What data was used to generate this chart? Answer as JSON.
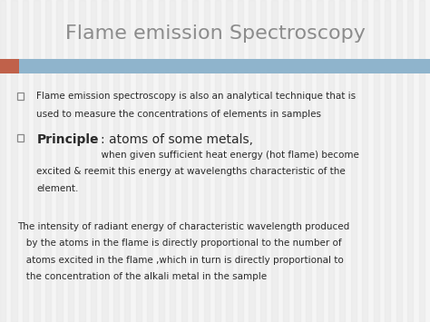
{
  "title": "Flame emission Spectroscopy",
  "title_color": "#8c8c8c",
  "title_fontsize": 16,
  "title_font": "Georgia",
  "bg_color": "#f5f5f5",
  "stripe_color": "#e8e8e8",
  "header_bar_color": "#8fb4cc",
  "header_bar_left_color": "#c0614a",
  "bullet1_line1": "Flame emission spectroscopy is also an analytical technique that is",
  "bullet1_line2": "used to measure the concentrations of elements in samples",
  "bullet2_bold": "Principle",
  "bullet2_rest": ": atoms of some metals,",
  "bullet2_sub_line1": "                      when given sufficient heat energy (hot flame) become",
  "bullet2_sub_line2": "excited & reemit this energy at wavelengths characteristic of the",
  "bullet2_sub_line3": "element.",
  "para_line1": "The intensity of radiant energy of characteristic wavelength produced",
  "para_line2": "   by the atoms in the flame is directly proportional to the number of",
  "para_line3": "   atoms excited in the flame ,which in turn is directly proportional to",
  "para_line4": "   the concentration of the alkali metal in the sample",
  "text_color": "#2a2a2a",
  "bullet_square_color": "#888888",
  "body_fontsize": 7.5,
  "principle_fontsize": 10,
  "fig_width": 4.74,
  "fig_height": 3.55,
  "dpi": 100
}
